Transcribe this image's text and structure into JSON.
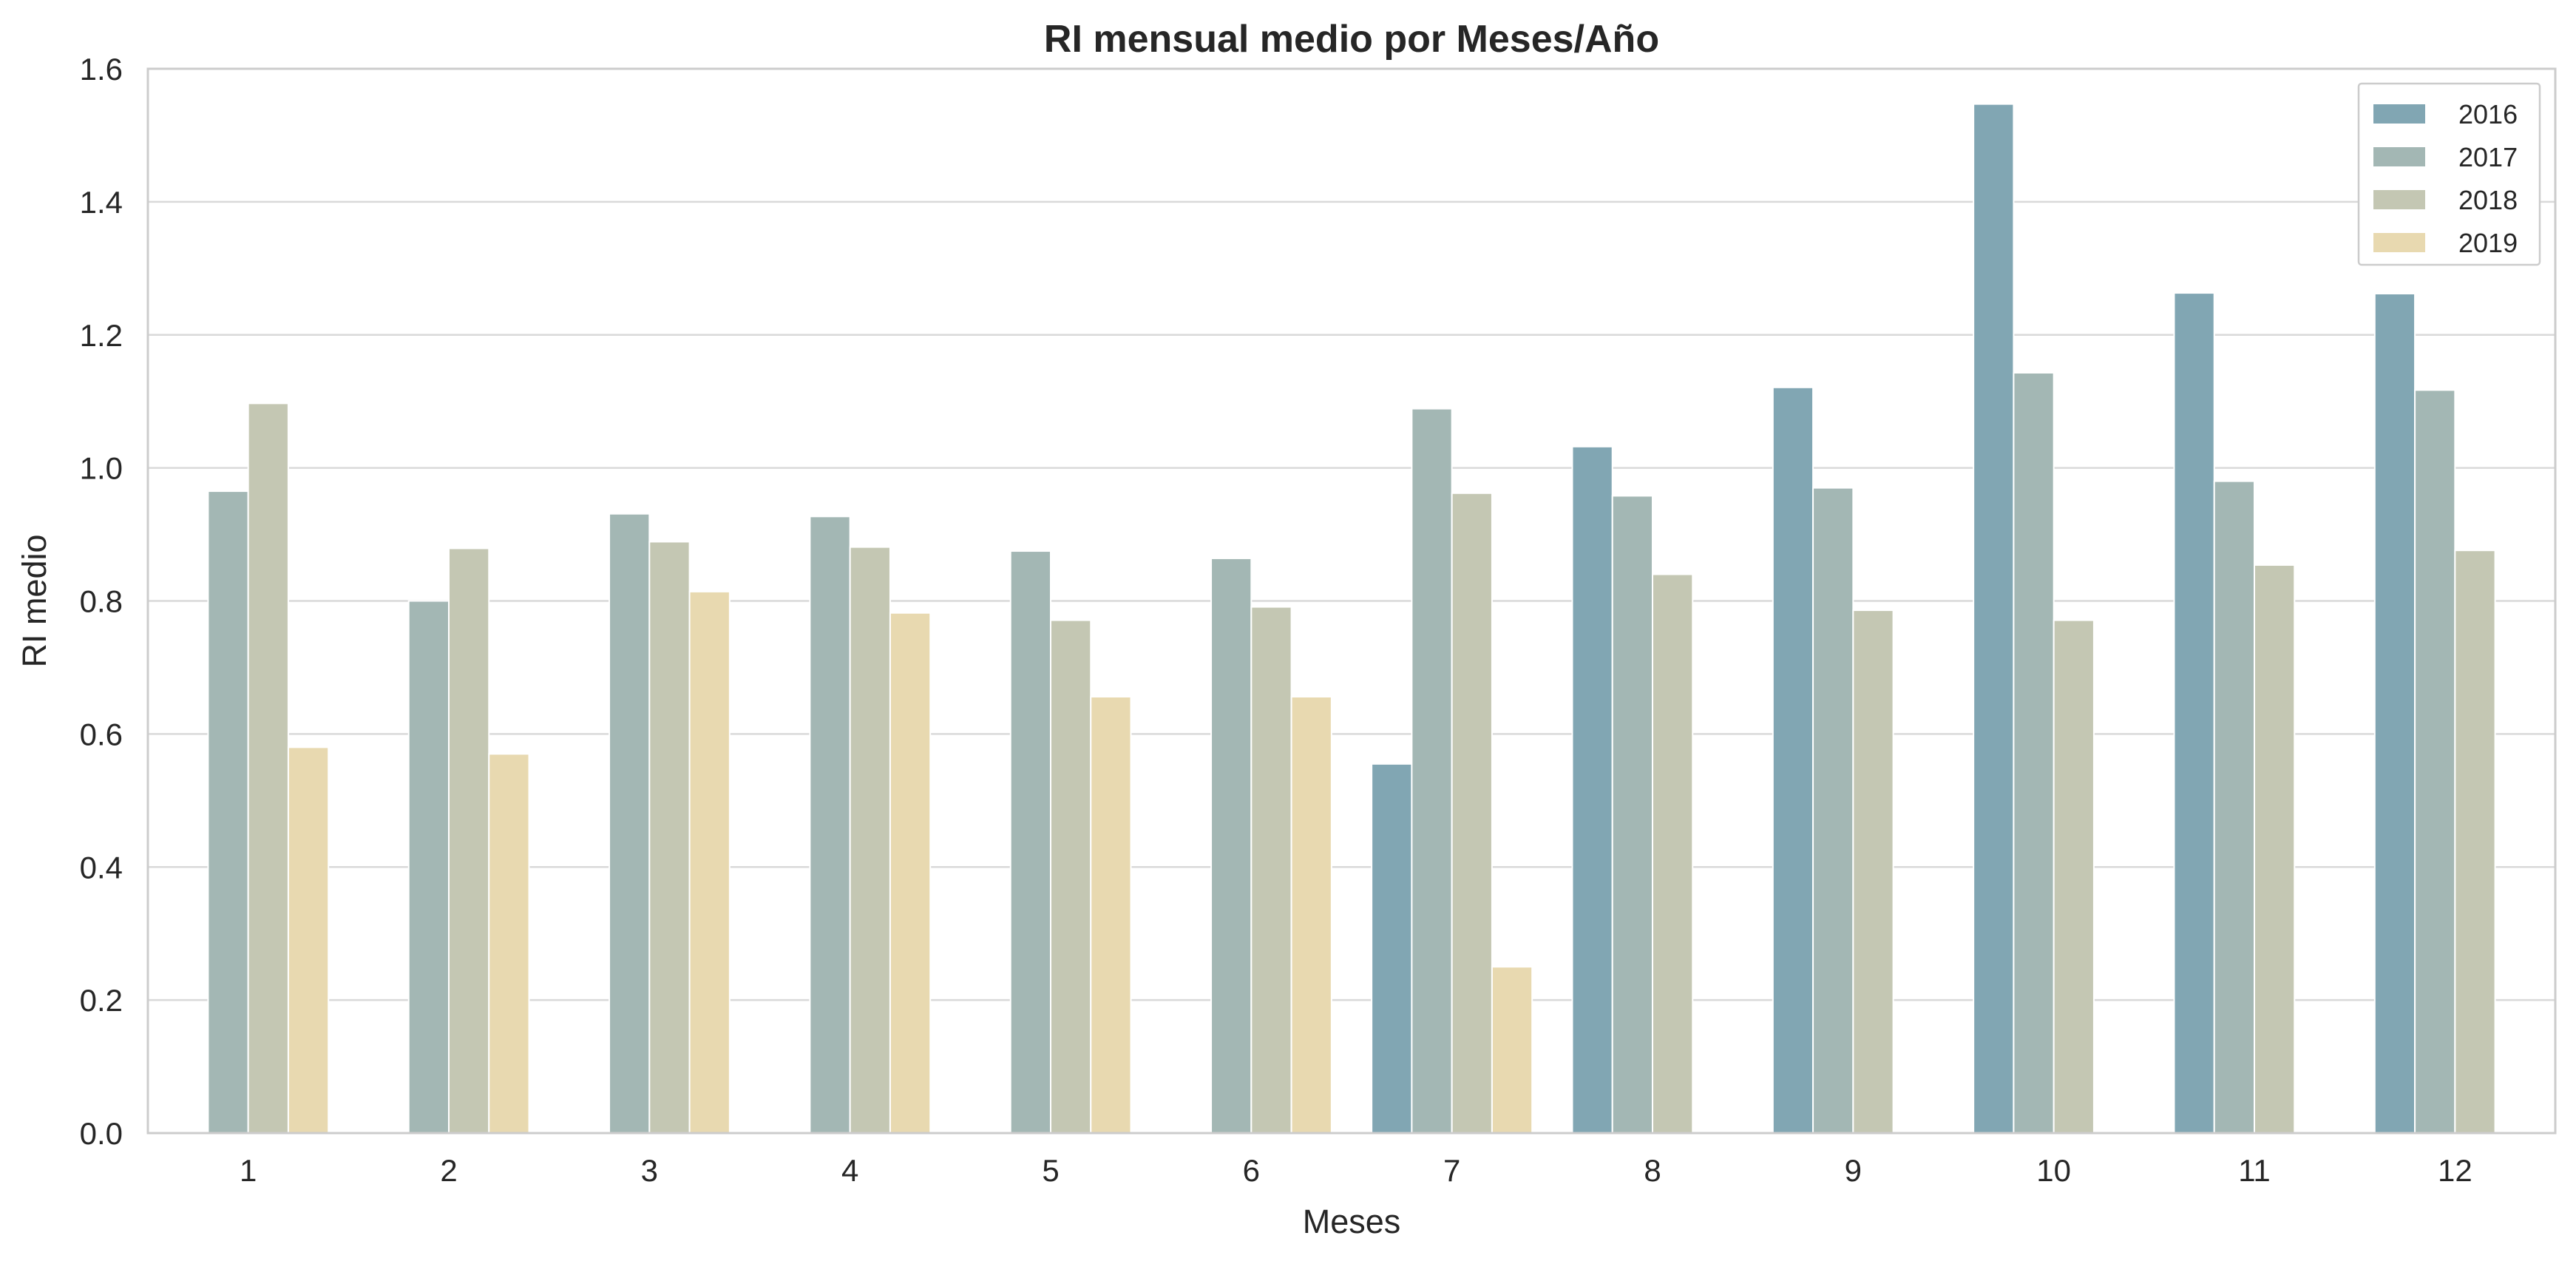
{
  "chart_data": {
    "type": "bar",
    "title": "RI mensual medio por Meses/Año",
    "xlabel": "Meses",
    "ylabel": "RI medio",
    "categories": [
      "1",
      "2",
      "3",
      "4",
      "5",
      "6",
      "7",
      "8",
      "9",
      "10",
      "11",
      "12"
    ],
    "ylim": [
      0,
      1.6
    ],
    "yticks": [
      "0.0",
      "0.2",
      "0.4",
      "0.6",
      "0.8",
      "1.0",
      "1.2",
      "1.4",
      "1.6"
    ],
    "grid": "horizontal",
    "legend_position": "top-right",
    "series": [
      {
        "name": "2016",
        "color": "#81a6b3",
        "values": [
          null,
          null,
          null,
          null,
          null,
          null,
          0.555,
          1.032,
          1.121,
          1.547,
          1.263,
          1.262
        ]
      },
      {
        "name": "2017",
        "color": "#a3b7b4",
        "values": [
          0.965,
          0.8,
          0.931,
          0.927,
          0.875,
          0.864,
          1.089,
          0.958,
          0.97,
          1.143,
          0.98,
          1.117
        ]
      },
      {
        "name": "2018",
        "color": "#c4c7b3",
        "values": [
          1.097,
          0.879,
          0.889,
          0.881,
          0.771,
          0.791,
          0.962,
          0.84,
          0.786,
          0.771,
          0.854,
          0.876
        ]
      },
      {
        "name": "2019",
        "color": "#e8d9b0",
        "values": [
          0.58,
          0.57,
          0.814,
          0.782,
          0.656,
          0.656,
          0.25,
          null,
          null,
          null,
          null,
          null
        ]
      }
    ]
  }
}
